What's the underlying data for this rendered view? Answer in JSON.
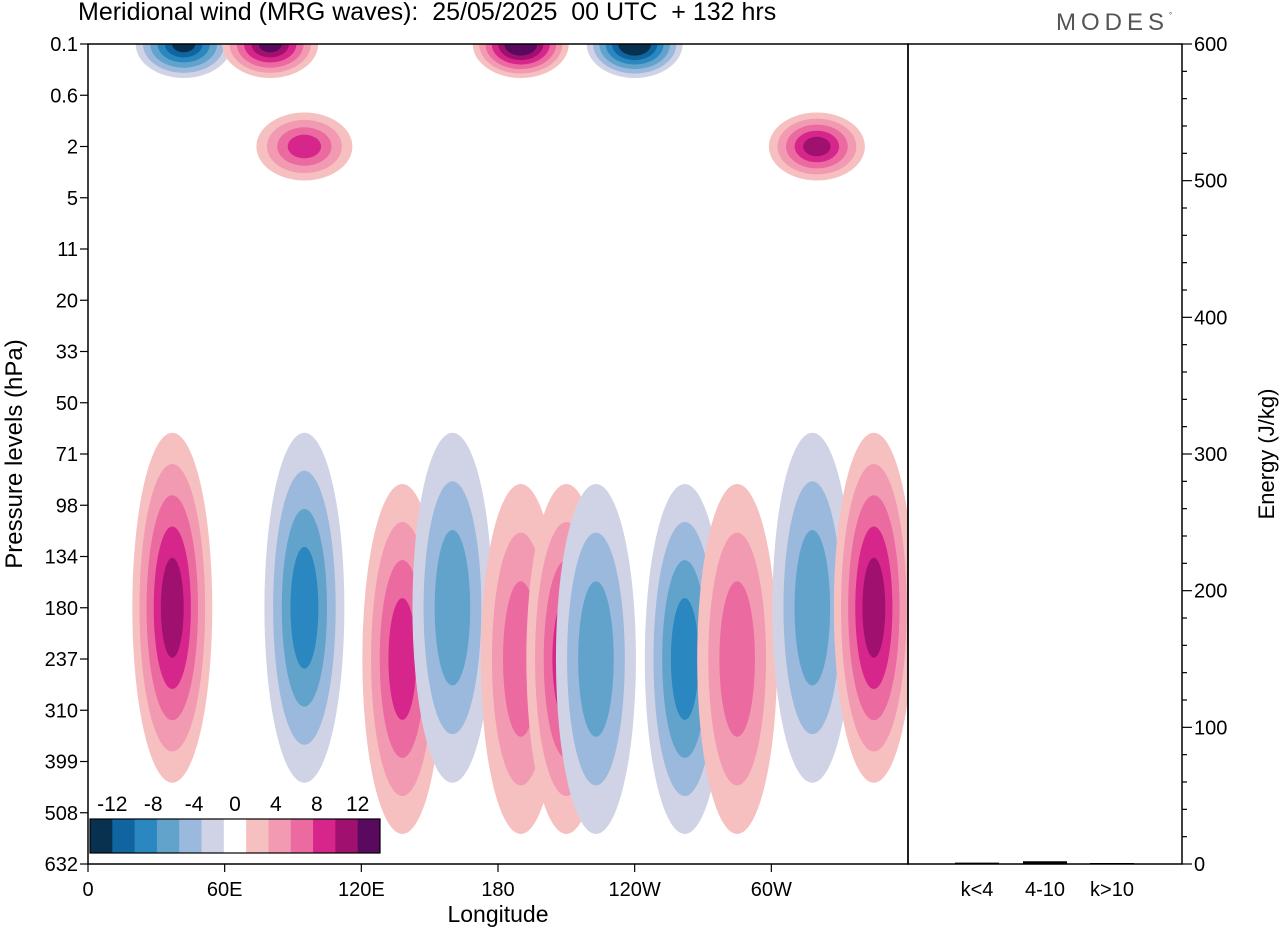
{
  "title": "Meridional wind (MRG waves):  25/05/2025  00 UTC  + 132 hrs",
  "brand": {
    "name": "MODES",
    "mark": "°"
  },
  "chart_data": [
    {
      "type": "heatmap",
      "title": "Meridional wind (MRG waves):  25/05/2025  00 UTC  + 132 hrs",
      "xlabel": "Longitude",
      "ylabel": "Pressure levels (hPa)",
      "x_ticks": [
        "0",
        "60E",
        "120E",
        "180",
        "120W",
        "60W"
      ],
      "x_tick_degrees": [
        0,
        60,
        120,
        180,
        240,
        300
      ],
      "xlim": [
        0,
        360
      ],
      "y_ticks": [
        "0.1",
        "0.6",
        "2",
        "5",
        "11",
        "20",
        "33",
        "50",
        "71",
        "98",
        "134",
        "180",
        "237",
        "310",
        "399",
        "508",
        "632"
      ],
      "colorbar": {
        "labels": [
          "-12",
          "-8",
          "-4",
          "0",
          "4",
          "8",
          "12"
        ],
        "levels": [
          -14,
          -12,
          -10,
          -8,
          -6,
          -4,
          -2,
          2,
          4,
          6,
          8,
          10,
          12,
          14
        ],
        "colors": [
          "#08304f",
          "#1064a0",
          "#2b87c0",
          "#62a3cc",
          "#9bb9dc",
          "#d0d3e6",
          "#ffffff",
          "#f7c0c0",
          "#f39ab3",
          "#eb6aa0",
          "#d7268b",
          "#a0106e",
          "#5a0a5e"
        ]
      },
      "blobs": [
        {
          "lon": 37,
          "level": "180",
          "value": 11
        },
        {
          "lon": 95,
          "level": "180",
          "value": -9
        },
        {
          "lon": 138,
          "level": "237",
          "value": 9
        },
        {
          "lon": 160,
          "level": "180",
          "value": -6
        },
        {
          "lon": 190,
          "level": "237",
          "value": 6
        },
        {
          "lon": 210,
          "level": "237",
          "value": 8
        },
        {
          "lon": 223,
          "level": "237",
          "value": -7
        },
        {
          "lon": 262,
          "level": "237",
          "value": -8
        },
        {
          "lon": 285,
          "level": "237",
          "value": 7
        },
        {
          "lon": 318,
          "level": "180",
          "value": -6
        },
        {
          "lon": 345,
          "level": "180",
          "value": 10
        },
        {
          "lon": 42,
          "level": "0.1",
          "value": -12
        },
        {
          "lon": 80,
          "level": "0.1",
          "value": 12
        },
        {
          "lon": 190,
          "level": "0.1",
          "value": 14
        },
        {
          "lon": 240,
          "level": "0.1",
          "value": -14
        },
        {
          "lon": 95,
          "level": "2",
          "value": 8
        },
        {
          "lon": 320,
          "level": "2",
          "value": 10
        }
      ]
    },
    {
      "type": "bar",
      "ylabel": "Energy (J/kg)",
      "ylim": [
        0,
        600
      ],
      "y_ticks": [
        "0",
        "100",
        "200",
        "300",
        "400",
        "500",
        "600"
      ],
      "categories": [
        "k<4",
        "4-10",
        "k>10"
      ],
      "values": [
        1,
        2,
        0
      ]
    }
  ]
}
